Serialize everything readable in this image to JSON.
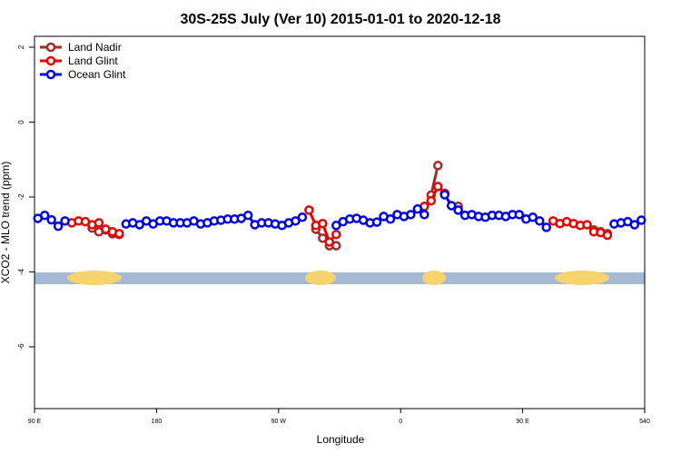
{
  "chart_data": {
    "type": "line",
    "title": "30S-25S July (Ver 10)   2015-01-01 to 2020-12-18",
    "x_label": "Longitude",
    "y_label": "XCO2 - MLO trend (ppm)",
    "xlim": [
      90,
      540
    ],
    "ylim": [
      -7.65,
      2.29
    ],
    "xticks": [
      {
        "value": 90,
        "label": "90 E"
      },
      180,
      {
        "value": 270,
        "label": "90 W"
      },
      {
        "value": 360,
        "label": "0"
      },
      {
        "value": 450,
        "label": "90 E"
      },
      540
    ],
    "yticks": [
      2,
      0,
      -2,
      -4,
      -6
    ],
    "legend": "top-left",
    "series": [
      {
        "name": "Land Nadir",
        "color": "#a52a2a",
        "x": [
          132.5,
          137.5,
          142.5,
          147.5,
          152.5,
          null,
          297.5,
          302.5,
          307.5,
          312.5,
          null,
          382.5,
          387.5,
          null,
          402.5,
          null,
          502.5,
          507.5,
          512.5
        ],
        "values": [
          -2.83,
          -2.93,
          -2.88,
          -2.98,
          -3.0,
          null,
          -2.86,
          -3.1,
          -3.3,
          -3.3,
          null,
          -1.95,
          -1.16,
          null,
          -2.25,
          null,
          -2.88,
          -2.93,
          -2.98
        ]
      },
      {
        "name": "Land Glint",
        "color": "#ee0000",
        "x": [
          117.5,
          122.5,
          127.5,
          132.5,
          137.5,
          142.5,
          147.5,
          152.5,
          null,
          292.5,
          297.5,
          302.5,
          307.5,
          312.5,
          null,
          377.5,
          382.5,
          387.5,
          392.5,
          null,
          472.5,
          477.5,
          482.5,
          487.5,
          492.5,
          497.5,
          502.5,
          507.5,
          512.5
        ],
        "values": [
          -2.69,
          -2.64,
          -2.66,
          -2.74,
          -2.69,
          -2.86,
          -2.93,
          -2.98,
          null,
          -2.35,
          -2.76,
          -2.71,
          -3.2,
          -3.0,
          null,
          -2.25,
          -2.1,
          -1.72,
          -1.9,
          null,
          -2.64,
          -2.71,
          -2.66,
          -2.71,
          -2.76,
          -2.74,
          -2.93,
          -2.95,
          -3.02
        ]
      },
      {
        "name": "Ocean Glint",
        "color": "#0000ee",
        "x": [
          92.5,
          97.5,
          102.5,
          107.5,
          112.5,
          null,
          157.5,
          162.5,
          167.5,
          172.5,
          177.5,
          182.5,
          187.5,
          192.5,
          197.5,
          202.5,
          207.5,
          212.5,
          217.5,
          222.5,
          227.5,
          232.5,
          237.5,
          242.5,
          247.5,
          252.5,
          257.5,
          262.5,
          267.5,
          272.5,
          277.5,
          282.5,
          287.5,
          null,
          312.5,
          317.5,
          322.5,
          327.5,
          332.5,
          337.5,
          342.5,
          347.5,
          352.5,
          357.5,
          362.5,
          367.5,
          372.5,
          377.5,
          null,
          392.5,
          397.5,
          402.5,
          407.5,
          412.5,
          417.5,
          422.5,
          427.5,
          432.5,
          437.5,
          442.5,
          447.5,
          452.5,
          457.5,
          462.5,
          467.5,
          null,
          517.5,
          522.5,
          527.5,
          532.5,
          537.5
        ],
        "values": [
          -2.57,
          -2.49,
          -2.61,
          -2.78,
          -2.64,
          null,
          -2.72,
          -2.69,
          -2.74,
          -2.64,
          -2.72,
          -2.64,
          -2.64,
          -2.69,
          -2.69,
          -2.69,
          -2.64,
          -2.72,
          -2.69,
          -2.64,
          -2.62,
          -2.59,
          -2.59,
          -2.57,
          -2.49,
          -2.74,
          -2.69,
          -2.69,
          -2.72,
          -2.76,
          -2.69,
          -2.64,
          -2.54,
          null,
          -2.76,
          -2.66,
          -2.59,
          -2.57,
          -2.62,
          -2.69,
          -2.67,
          -2.52,
          -2.59,
          -2.47,
          -2.52,
          -2.47,
          -2.32,
          -2.47,
          null,
          -1.94,
          -2.23,
          -2.35,
          -2.49,
          -2.47,
          -2.52,
          -2.54,
          -2.49,
          -2.49,
          -2.52,
          -2.47,
          -2.47,
          -2.59,
          -2.54,
          -2.64,
          -2.81,
          null,
          -2.72,
          -2.69,
          -2.66,
          -2.74,
          -2.62
        ]
      }
    ]
  }
}
